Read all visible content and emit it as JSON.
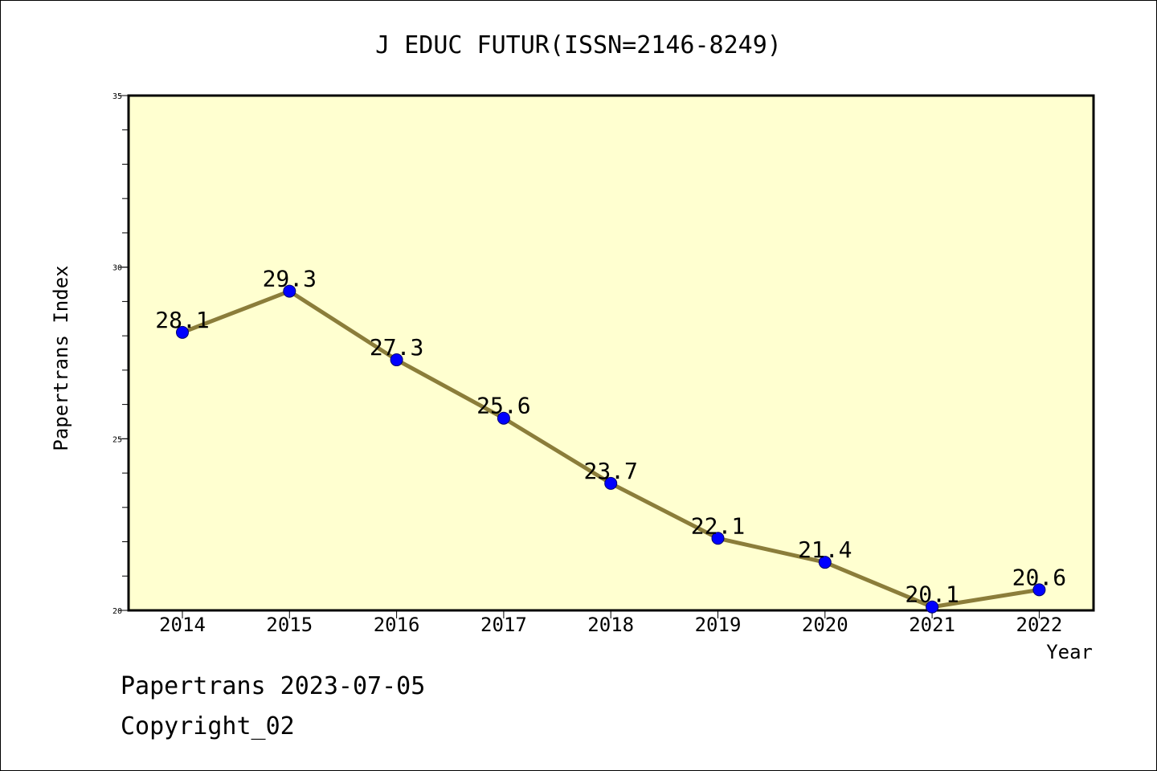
{
  "chart_data": {
    "type": "line",
    "title": "J EDUC FUTUR(ISSN=2146-8249)",
    "xlabel": "Year",
    "ylabel": "Papertrans Index",
    "categories": [
      "2014",
      "2015",
      "2016",
      "2017",
      "2018",
      "2019",
      "2020",
      "2021",
      "2022"
    ],
    "series": [
      {
        "values": [
          28.1,
          29.3,
          27.3,
          25.6,
          23.7,
          22.1,
          21.4,
          20.1,
          20.6
        ]
      }
    ],
    "data_labels": [
      "28.1",
      "29.3",
      "27.3",
      "25.6",
      "23.7",
      "22.1",
      "21.4",
      "20.1",
      "20.6"
    ],
    "ylim": [
      20,
      35
    ],
    "yticks": [
      "20",
      "25",
      "30",
      "35"
    ],
    "grid": false,
    "plot_background": "#ffffd0",
    "line_color": "#8b7d3a",
    "marker_color": "#0000ff"
  },
  "footer": {
    "date_text": "Papertrans 2023-07-05",
    "copyright_text": "Copyright_02"
  }
}
